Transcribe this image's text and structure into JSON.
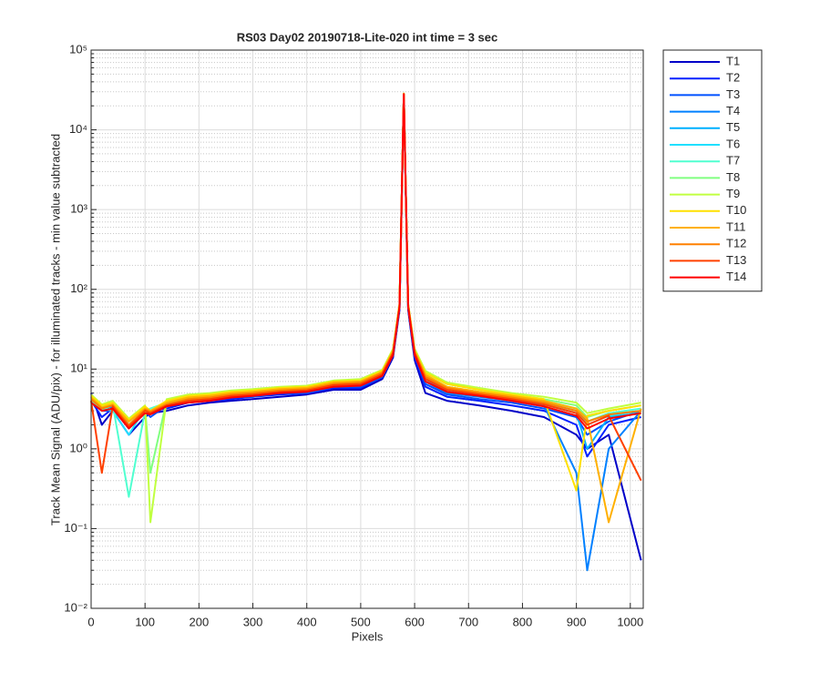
{
  "chart_data": {
    "type": "line",
    "title": "RS03 Day02 20190718-Lite-020 int time = 3 sec",
    "xlabel": "Pixels",
    "ylabel": "Track Mean Signal (ADU/pix) - for illuminated tracks - min value subtracted",
    "log_y": true,
    "grid": true,
    "minor_grid": true,
    "legend": "outside-right",
    "xlim": [
      0,
      1024
    ],
    "xticks": [
      0,
      100,
      200,
      300,
      400,
      500,
      600,
      700,
      800,
      900,
      1000
    ],
    "ylim": [
      0.01,
      100000
    ],
    "yticks": [
      {
        "value": 0.01,
        "label": "10⁻²"
      },
      {
        "value": 0.1,
        "label": "10⁻¹"
      },
      {
        "value": 1,
        "label": "10⁰"
      },
      {
        "value": 10,
        "label": "10¹"
      },
      {
        "value": 100,
        "label": "10²"
      },
      {
        "value": 1000,
        "label": "10³"
      },
      {
        "value": 10000,
        "label": "10⁴"
      },
      {
        "value": 100000,
        "label": "10⁵"
      }
    ],
    "x": [
      0,
      20,
      40,
      70,
      100,
      110,
      140,
      180,
      220,
      260,
      300,
      350,
      400,
      450,
      500,
      540,
      560,
      572,
      580,
      588,
      600,
      620,
      660,
      720,
      780,
      840,
      900,
      920,
      960,
      1020
    ],
    "series": [
      {
        "name": "T1",
        "color": "#0000c8",
        "values": [
          5,
          2,
          3,
          1.5,
          2.5,
          2.8,
          3,
          3.5,
          3.8,
          4,
          4.2,
          4.5,
          4.8,
          5.5,
          5.5,
          7.5,
          14,
          55,
          27000,
          55,
          13,
          5,
          4,
          3.5,
          3,
          2.5,
          1.5,
          1,
          1.5,
          0.04
        ]
      },
      {
        "name": "T2",
        "color": "#0020ff",
        "values": [
          4,
          2.5,
          3.2,
          1.8,
          2.8,
          3,
          3.2,
          3.8,
          4,
          4.2,
          4.5,
          4.8,
          5,
          5.8,
          5.8,
          8,
          15,
          58,
          27500,
          58,
          14,
          6,
          4.5,
          4,
          3.5,
          3,
          2,
          0.8,
          2,
          2.5
        ]
      },
      {
        "name": "T3",
        "color": "#0050ff",
        "values": [
          4.5,
          3,
          3,
          2,
          3,
          2.5,
          3.5,
          4,
          4,
          4.5,
          4.5,
          5,
          5,
          6,
          6,
          8,
          15,
          60,
          28000,
          60,
          15,
          6.5,
          4.8,
          4.2,
          3.8,
          3.2,
          2.5,
          1.5,
          2.2,
          3
        ]
      },
      {
        "name": "T4",
        "color": "#0080ff",
        "values": [
          4,
          3.5,
          3.3,
          2.2,
          3.2,
          3,
          3.5,
          4,
          4.2,
          4.5,
          4.6,
          5,
          5.2,
          6,
          6.2,
          8.2,
          15,
          60,
          28000,
          60,
          15,
          7,
          5,
          4.5,
          4,
          3.5,
          0.5,
          0.03,
          1,
          3
        ]
      },
      {
        "name": "T5",
        "color": "#00b0ff",
        "values": [
          3.8,
          3,
          3.5,
          2,
          3,
          2.8,
          3.8,
          4.2,
          4.3,
          4.6,
          4.8,
          5.2,
          5.3,
          6.2,
          6.5,
          8.5,
          16,
          62,
          28000,
          62,
          16,
          7.5,
          5.2,
          4.6,
          4.2,
          3.6,
          2.8,
          1,
          2.5,
          2.8
        ]
      },
      {
        "name": "T6",
        "color": "#20e0ff",
        "values": [
          4.2,
          3.2,
          3,
          1.5,
          3.2,
          3,
          3.6,
          4.3,
          4.5,
          4.8,
          5,
          5.4,
          5.5,
          6.4,
          6.6,
          8.8,
          16,
          62,
          28000,
          62,
          16,
          7.8,
          5.5,
          4.8,
          4.3,
          3.8,
          3,
          2,
          2.6,
          3
        ]
      },
      {
        "name": "T7",
        "color": "#50ffd0",
        "values": [
          4,
          3,
          3.6,
          0.25,
          3,
          3.2,
          3.8,
          4.5,
          4.6,
          5,
          5.2,
          5.6,
          5.8,
          6.6,
          7,
          9,
          17,
          64,
          28500,
          64,
          17,
          8.5,
          6,
          5,
          4.5,
          4,
          3.2,
          2.2,
          2.8,
          3.2
        ]
      },
      {
        "name": "T8",
        "color": "#80ff80",
        "values": [
          4.5,
          3.4,
          3.8,
          2.2,
          3.3,
          0.5,
          4,
          4.6,
          4.8,
          5.2,
          5.4,
          5.8,
          6,
          7,
          7.2,
          9.5,
          17,
          65,
          28500,
          65,
          17,
          9,
          6.5,
          5.5,
          4.8,
          4.2,
          3.5,
          2.5,
          3,
          3.5
        ]
      },
      {
        "name": "T9",
        "color": "#c0ff40",
        "values": [
          4.8,
          3.6,
          4,
          2.4,
          3.5,
          0.12,
          4.2,
          4.8,
          5,
          5.4,
          5.6,
          6,
          6.2,
          7.2,
          7.5,
          9.8,
          18,
          66,
          28500,
          66,
          18,
          9.5,
          6.8,
          5.8,
          5,
          4.5,
          3.8,
          2.8,
          3.2,
          3.8
        ]
      },
      {
        "name": "T10",
        "color": "#ffe000",
        "values": [
          4.6,
          3.5,
          3.8,
          2.3,
          3.4,
          3,
          4,
          4.6,
          4.8,
          5.2,
          5.4,
          5.8,
          6,
          7,
          7.2,
          9.5,
          17,
          65,
          28500,
          65,
          17,
          9,
          6.5,
          5.5,
          4.8,
          4.2,
          0.3,
          2.6,
          3,
          3.5
        ]
      },
      {
        "name": "T11",
        "color": "#ffb000",
        "values": [
          4.4,
          3.3,
          3.6,
          2.2,
          3.2,
          3,
          3.8,
          4.4,
          4.6,
          5,
          5.2,
          5.6,
          5.8,
          6.8,
          7,
          9.2,
          17,
          64,
          28500,
          64,
          17,
          8.5,
          6,
          5.2,
          4.6,
          4,
          3.2,
          2.4,
          0.12,
          3.2
        ]
      },
      {
        "name": "T12",
        "color": "#ff8000",
        "values": [
          4.2,
          3.2,
          3.5,
          2,
          3.1,
          2.9,
          3.6,
          4.2,
          4.4,
          4.8,
          5,
          5.4,
          5.6,
          6.5,
          6.8,
          9,
          16,
          62,
          28000,
          62,
          16,
          8,
          5.8,
          5,
          4.4,
          3.8,
          3,
          2.2,
          2.7,
          3
        ]
      },
      {
        "name": "T13",
        "color": "#ff4000",
        "values": [
          4,
          0.5,
          3.4,
          1.9,
          3,
          2.8,
          3.5,
          4,
          4.2,
          4.6,
          4.8,
          5.2,
          5.4,
          6.3,
          6.5,
          8.6,
          16,
          61,
          28000,
          61,
          16,
          7.5,
          5.5,
          4.8,
          4.2,
          3.6,
          2.8,
          2,
          2.6,
          0.4
        ]
      },
      {
        "name": "T14",
        "color": "#ff0000",
        "values": [
          3.8,
          3,
          3.2,
          1.8,
          2.8,
          2.7,
          3.4,
          3.8,
          4,
          4.4,
          4.6,
          5,
          5.2,
          6,
          6.2,
          8.2,
          15,
          60,
          28000,
          60,
          15,
          7,
          5.2,
          4.6,
          4,
          3.4,
          2.6,
          1.8,
          2.4,
          2.8
        ]
      }
    ]
  }
}
